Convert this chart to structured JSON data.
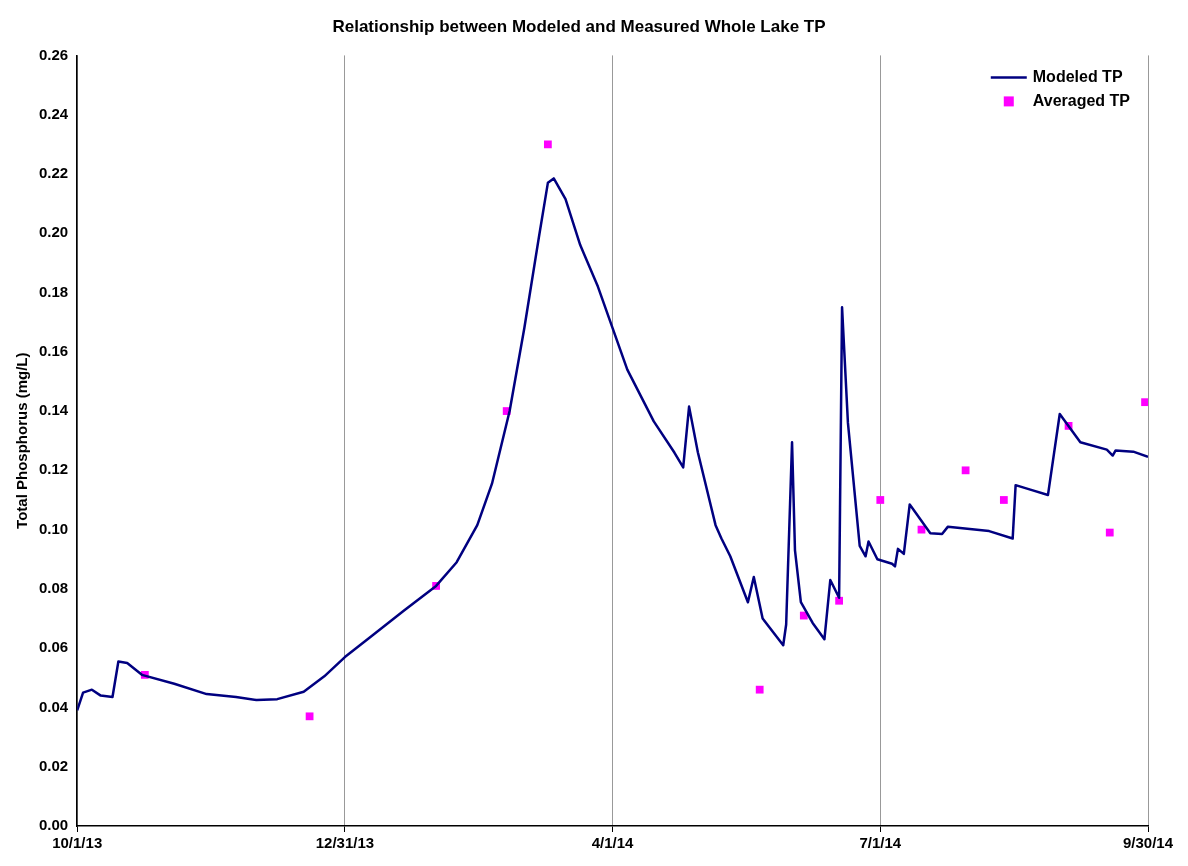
{
  "chart_data": {
    "type": "line",
    "title": "Relationship between Modeled and Measured Whole Lake TP",
    "ylabel": "Total Phosphorus (mg/L)",
    "xlim": [
      "2013-10-01",
      "2014-09-30"
    ],
    "xticks": [
      {
        "value": "2013-10-01",
        "label": "10/1/13"
      },
      {
        "value": "2013-12-31",
        "label": "12/31/13"
      },
      {
        "value": "2014-04-01",
        "label": "4/1/14"
      },
      {
        "value": "2014-07-01",
        "label": "7/1/14"
      },
      {
        "value": "2014-09-30",
        "label": "9/30/14"
      }
    ],
    "ylim": [
      0,
      0.26
    ],
    "yticks": [
      {
        "value": 0,
        "label": "0.00"
      },
      {
        "value": 0.02,
        "label": "0.02"
      },
      {
        "value": 0.04,
        "label": "0.04"
      },
      {
        "value": 0.06,
        "label": "0.06"
      },
      {
        "value": 0.08,
        "label": "0.08"
      },
      {
        "value": 0.1,
        "label": "0.10"
      },
      {
        "value": 0.12,
        "label": "0.12"
      },
      {
        "value": 0.14,
        "label": "0.14"
      },
      {
        "value": 0.16,
        "label": "0.16"
      },
      {
        "value": 0.18,
        "label": "0.18"
      },
      {
        "value": 0.2,
        "label": "0.20"
      },
      {
        "value": 0.22,
        "label": "0.22"
      },
      {
        "value": 0.24,
        "label": "0.24"
      },
      {
        "value": 0.26,
        "label": "0.26"
      }
    ],
    "grid": "x",
    "legend": "top right",
    "series": [
      {
        "name": "Modeled TP",
        "type": "line",
        "color": "#000080",
        "marker": "none",
        "line_style": "solid",
        "x": [
          "2013-10-01",
          "2013-10-03",
          "2013-10-06",
          "2013-10-09",
          "2013-10-13",
          "2013-10-15",
          "2013-10-18",
          "2013-10-23",
          "2013-11-03",
          "2013-11-14",
          "2013-11-24",
          "2013-12-01",
          "2013-12-08",
          "2013-12-17",
          "2013-12-24",
          "2013-12-31",
          "2014-01-09",
          "2014-01-20",
          "2014-01-31",
          "2014-02-07",
          "2014-02-14",
          "2014-02-19",
          "2014-02-25",
          "2014-03-02",
          "2014-03-07",
          "2014-03-10",
          "2014-03-12",
          "2014-03-16",
          "2014-03-21",
          "2014-03-27",
          "2014-04-01",
          "2014-04-06",
          "2014-04-15",
          "2014-04-22",
          "2014-04-25",
          "2014-04-27",
          "2014-04-30",
          "2014-05-06",
          "2014-05-08",
          "2014-05-11",
          "2014-05-17",
          "2014-05-19",
          "2014-05-22",
          "2014-05-29",
          "2014-05-30",
          "2014-06-01",
          "2014-06-02",
          "2014-06-04",
          "2014-06-08",
          "2014-06-12",
          "2014-06-14",
          "2014-06-17",
          "2014-06-18",
          "2014-06-20",
          "2014-06-24",
          "2014-06-26",
          "2014-06-27",
          "2014-06-30",
          "2014-07-05",
          "2014-07-06",
          "2014-07-07",
          "2014-07-09",
          "2014-07-11",
          "2014-07-18",
          "2014-07-22",
          "2014-07-24",
          "2014-08-07",
          "2014-08-15",
          "2014-08-16",
          "2014-08-21",
          "2014-08-27",
          "2014-08-31",
          "2014-09-07",
          "2014-09-16",
          "2014-09-18",
          "2014-09-19",
          "2014-09-25",
          "2014-09-30"
        ],
        "values": [
          0.039,
          0.045,
          0.046,
          0.044,
          0.0435,
          0.0555,
          0.055,
          0.051,
          0.048,
          0.0445,
          0.0435,
          0.0425,
          0.0428,
          0.0453,
          0.0505,
          0.057,
          0.064,
          0.0726,
          0.081,
          0.089,
          0.1015,
          0.1155,
          0.14,
          0.168,
          0.199,
          0.217,
          0.2185,
          0.2115,
          0.196,
          0.182,
          0.168,
          0.154,
          0.1365,
          0.126,
          0.121,
          0.1415,
          0.126,
          0.1015,
          0.097,
          0.091,
          0.0755,
          0.084,
          0.07,
          0.061,
          0.068,
          0.1295,
          0.093,
          0.0755,
          0.0685,
          0.063,
          0.083,
          0.077,
          0.175,
          0.136,
          0.0945,
          0.091,
          0.096,
          0.09,
          0.0885,
          0.0876,
          0.0935,
          0.0918,
          0.1085,
          0.0988,
          0.0985,
          0.101,
          0.0995,
          0.097,
          0.115,
          0.1135,
          0.1117,
          0.139,
          0.1295,
          0.127,
          0.125,
          0.1267,
          0.1263,
          0.1246
        ]
      },
      {
        "name": "Averaged TP",
        "type": "scatter",
        "color": "#ff00ff",
        "marker": "square",
        "x": [
          "2013-10-24",
          "2013-12-19",
          "2014-01-31",
          "2014-02-24",
          "2014-03-10",
          "2014-05-21",
          "2014-06-05",
          "2014-06-17",
          "2014-07-01",
          "2014-07-15",
          "2014-07-30",
          "2014-08-12",
          "2014-09-03",
          "2014-09-17",
          "2014-09-29"
        ],
        "values": [
          0.051,
          0.037,
          0.081,
          0.14,
          0.23,
          0.046,
          0.071,
          0.076,
          0.11,
          0.1,
          0.12,
          0.11,
          0.135,
          0.099,
          0.143
        ]
      }
    ]
  }
}
